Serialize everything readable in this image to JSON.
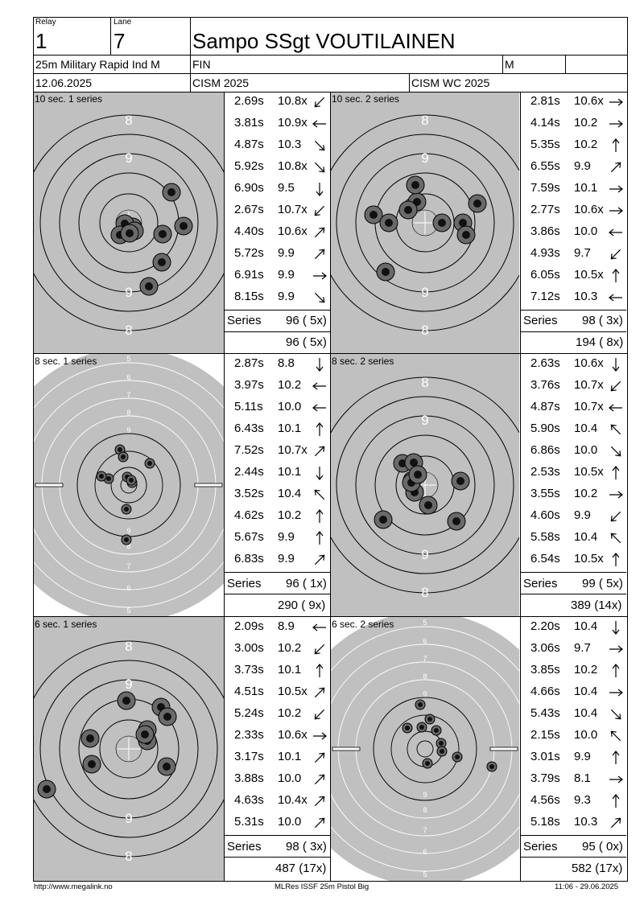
{
  "header": {
    "relay_label": "Relay",
    "relay_value": "1",
    "lane_label": "Lane",
    "lane_value": "7",
    "shooter_name": "Sampo SSgt VOUTILAINEN",
    "event": "25m Military Rapid Ind M",
    "nation": "FIN",
    "gender": "M",
    "date": "12.06.2025",
    "competition": "CISM 2025",
    "championship": "CISM WC 2025"
  },
  "panels": [
    {
      "label": "10 sec. 1 series",
      "target": "precision",
      "shots": [
        {
          "time": "2.69s",
          "score": "10.8x",
          "dir": "sw"
        },
        {
          "time": "3.81s",
          "score": "10.9x",
          "dir": "w"
        },
        {
          "time": "4.87s",
          "score": "10.3",
          "dir": "se"
        },
        {
          "time": "5.92s",
          "score": "10.8x",
          "dir": "se"
        },
        {
          "time": "6.90s",
          "score": "9.5",
          "dir": "s"
        },
        {
          "time": "2.67s",
          "score": "10.7x",
          "dir": "sw"
        },
        {
          "time": "4.40s",
          "score": "10.6x",
          "dir": "ne"
        },
        {
          "time": "5.72s",
          "score": "9.9",
          "dir": "ne"
        },
        {
          "time": "6.91s",
          "score": "9.9",
          "dir": "e"
        },
        {
          "time": "8.15s",
          "score": "9.9",
          "dir": "se"
        }
      ],
      "series_label": "Series",
      "series_total": "96 ( 5x)",
      "running_total": "96 ( 5x)"
    },
    {
      "label": "10 sec. 2 series",
      "target": "precision",
      "shots": [
        {
          "time": "2.81s",
          "score": "10.6x",
          "dir": "e"
        },
        {
          "time": "4.14s",
          "score": "10.2",
          "dir": "e"
        },
        {
          "time": "5.35s",
          "score": "10.2",
          "dir": "n"
        },
        {
          "time": "6.55s",
          "score": "9.9",
          "dir": "ne"
        },
        {
          "time": "7.59s",
          "score": "10.1",
          "dir": "e"
        },
        {
          "time": "2.77s",
          "score": "10.6x",
          "dir": "e"
        },
        {
          "time": "3.86s",
          "score": "10.0",
          "dir": "w"
        },
        {
          "time": "4.93s",
          "score": "9.7",
          "dir": "sw"
        },
        {
          "time": "6.05s",
          "score": "10.5x",
          "dir": "n"
        },
        {
          "time": "7.12s",
          "score": "10.3",
          "dir": "w"
        }
      ],
      "series_label": "Series",
      "series_total": "98 ( 3x)",
      "running_total": "194 ( 8x)"
    },
    {
      "label": "8 sec. 1 series",
      "target": "rapid",
      "shots": [
        {
          "time": "2.87s",
          "score": "8.8",
          "dir": "s"
        },
        {
          "time": "3.97s",
          "score": "10.2",
          "dir": "w"
        },
        {
          "time": "5.11s",
          "score": "10.0",
          "dir": "w"
        },
        {
          "time": "6.43s",
          "score": "10.1",
          "dir": "n"
        },
        {
          "time": "7.52s",
          "score": "10.7x",
          "dir": "ne"
        },
        {
          "time": "2.44s",
          "score": "10.1",
          "dir": "s"
        },
        {
          "time": "3.52s",
          "score": "10.4",
          "dir": "nw"
        },
        {
          "time": "4.62s",
          "score": "10.2",
          "dir": "n"
        },
        {
          "time": "5.67s",
          "score": "9.9",
          "dir": "n"
        },
        {
          "time": "6.83s",
          "score": "9.9",
          "dir": "ne"
        }
      ],
      "series_label": "Series",
      "series_total": "96 ( 1x)",
      "running_total": "290 ( 9x)"
    },
    {
      "label": "8 sec. 2 series",
      "target": "precision",
      "shots": [
        {
          "time": "2.63s",
          "score": "10.6x",
          "dir": "s"
        },
        {
          "time": "3.76s",
          "score": "10.7x",
          "dir": "sw"
        },
        {
          "time": "4.87s",
          "score": "10.7x",
          "dir": "w"
        },
        {
          "time": "5.90s",
          "score": "10.4",
          "dir": "nw"
        },
        {
          "time": "6.86s",
          "score": "10.0",
          "dir": "se"
        },
        {
          "time": "2.53s",
          "score": "10.5x",
          "dir": "n"
        },
        {
          "time": "3.55s",
          "score": "10.2",
          "dir": "e"
        },
        {
          "time": "4.60s",
          "score": "9.9",
          "dir": "sw"
        },
        {
          "time": "5.58s",
          "score": "10.4",
          "dir": "nw"
        },
        {
          "time": "6.54s",
          "score": "10.5x",
          "dir": "n"
        }
      ],
      "series_label": "Series",
      "series_total": "99 ( 5x)",
      "running_total": "389 (14x)"
    },
    {
      "label": "6 sec. 1 series",
      "target": "precision",
      "shots": [
        {
          "time": "2.09s",
          "score": "8.9",
          "dir": "w"
        },
        {
          "time": "3.00s",
          "score": "10.2",
          "dir": "sw"
        },
        {
          "time": "3.73s",
          "score": "10.1",
          "dir": "n"
        },
        {
          "time": "4.51s",
          "score": "10.5x",
          "dir": "ne"
        },
        {
          "time": "5.24s",
          "score": "10.2",
          "dir": "sw"
        },
        {
          "time": "2.33s",
          "score": "10.6x",
          "dir": "e"
        },
        {
          "time": "3.17s",
          "score": "10.1",
          "dir": "ne"
        },
        {
          "time": "3.88s",
          "score": "10.0",
          "dir": "ne"
        },
        {
          "time": "4.63s",
          "score": "10.4x",
          "dir": "ne"
        },
        {
          "time": "5.31s",
          "score": "10.0",
          "dir": "ne"
        }
      ],
      "series_label": "Series",
      "series_total": "98 ( 3x)",
      "running_total": "487 (17x)"
    },
    {
      "label": "6 sec. 2 series",
      "target": "rapid",
      "shots": [
        {
          "time": "2.20s",
          "score": "10.4",
          "dir": "s"
        },
        {
          "time": "3.06s",
          "score": "9.7",
          "dir": "e"
        },
        {
          "time": "3.85s",
          "score": "10.2",
          "dir": "n"
        },
        {
          "time": "4.66s",
          "score": "10.4",
          "dir": "e"
        },
        {
          "time": "5.43s",
          "score": "10.4",
          "dir": "se"
        },
        {
          "time": "2.15s",
          "score": "10.0",
          "dir": "nw"
        },
        {
          "time": "3.01s",
          "score": "9.9",
          "dir": "n"
        },
        {
          "time": "3.79s",
          "score": "8.1",
          "dir": "e"
        },
        {
          "time": "4.56s",
          "score": "9.3",
          "dir": "n"
        },
        {
          "time": "5.18s",
          "score": "10.3",
          "dir": "ne"
        }
      ],
      "series_label": "Series",
      "series_total": "95 ( 0x)",
      "running_total": "582 (17x)"
    }
  ],
  "footer": {
    "website": "http://www.megalink.no",
    "software": "MLRes ISSF 25m Pistol Big",
    "timestamp": "11:06 - 29.06.2025"
  },
  "colors": {
    "target_face": "#c0c0c0",
    "shot_outer": "#6a6a6a",
    "shot_inner": "#111111"
  }
}
